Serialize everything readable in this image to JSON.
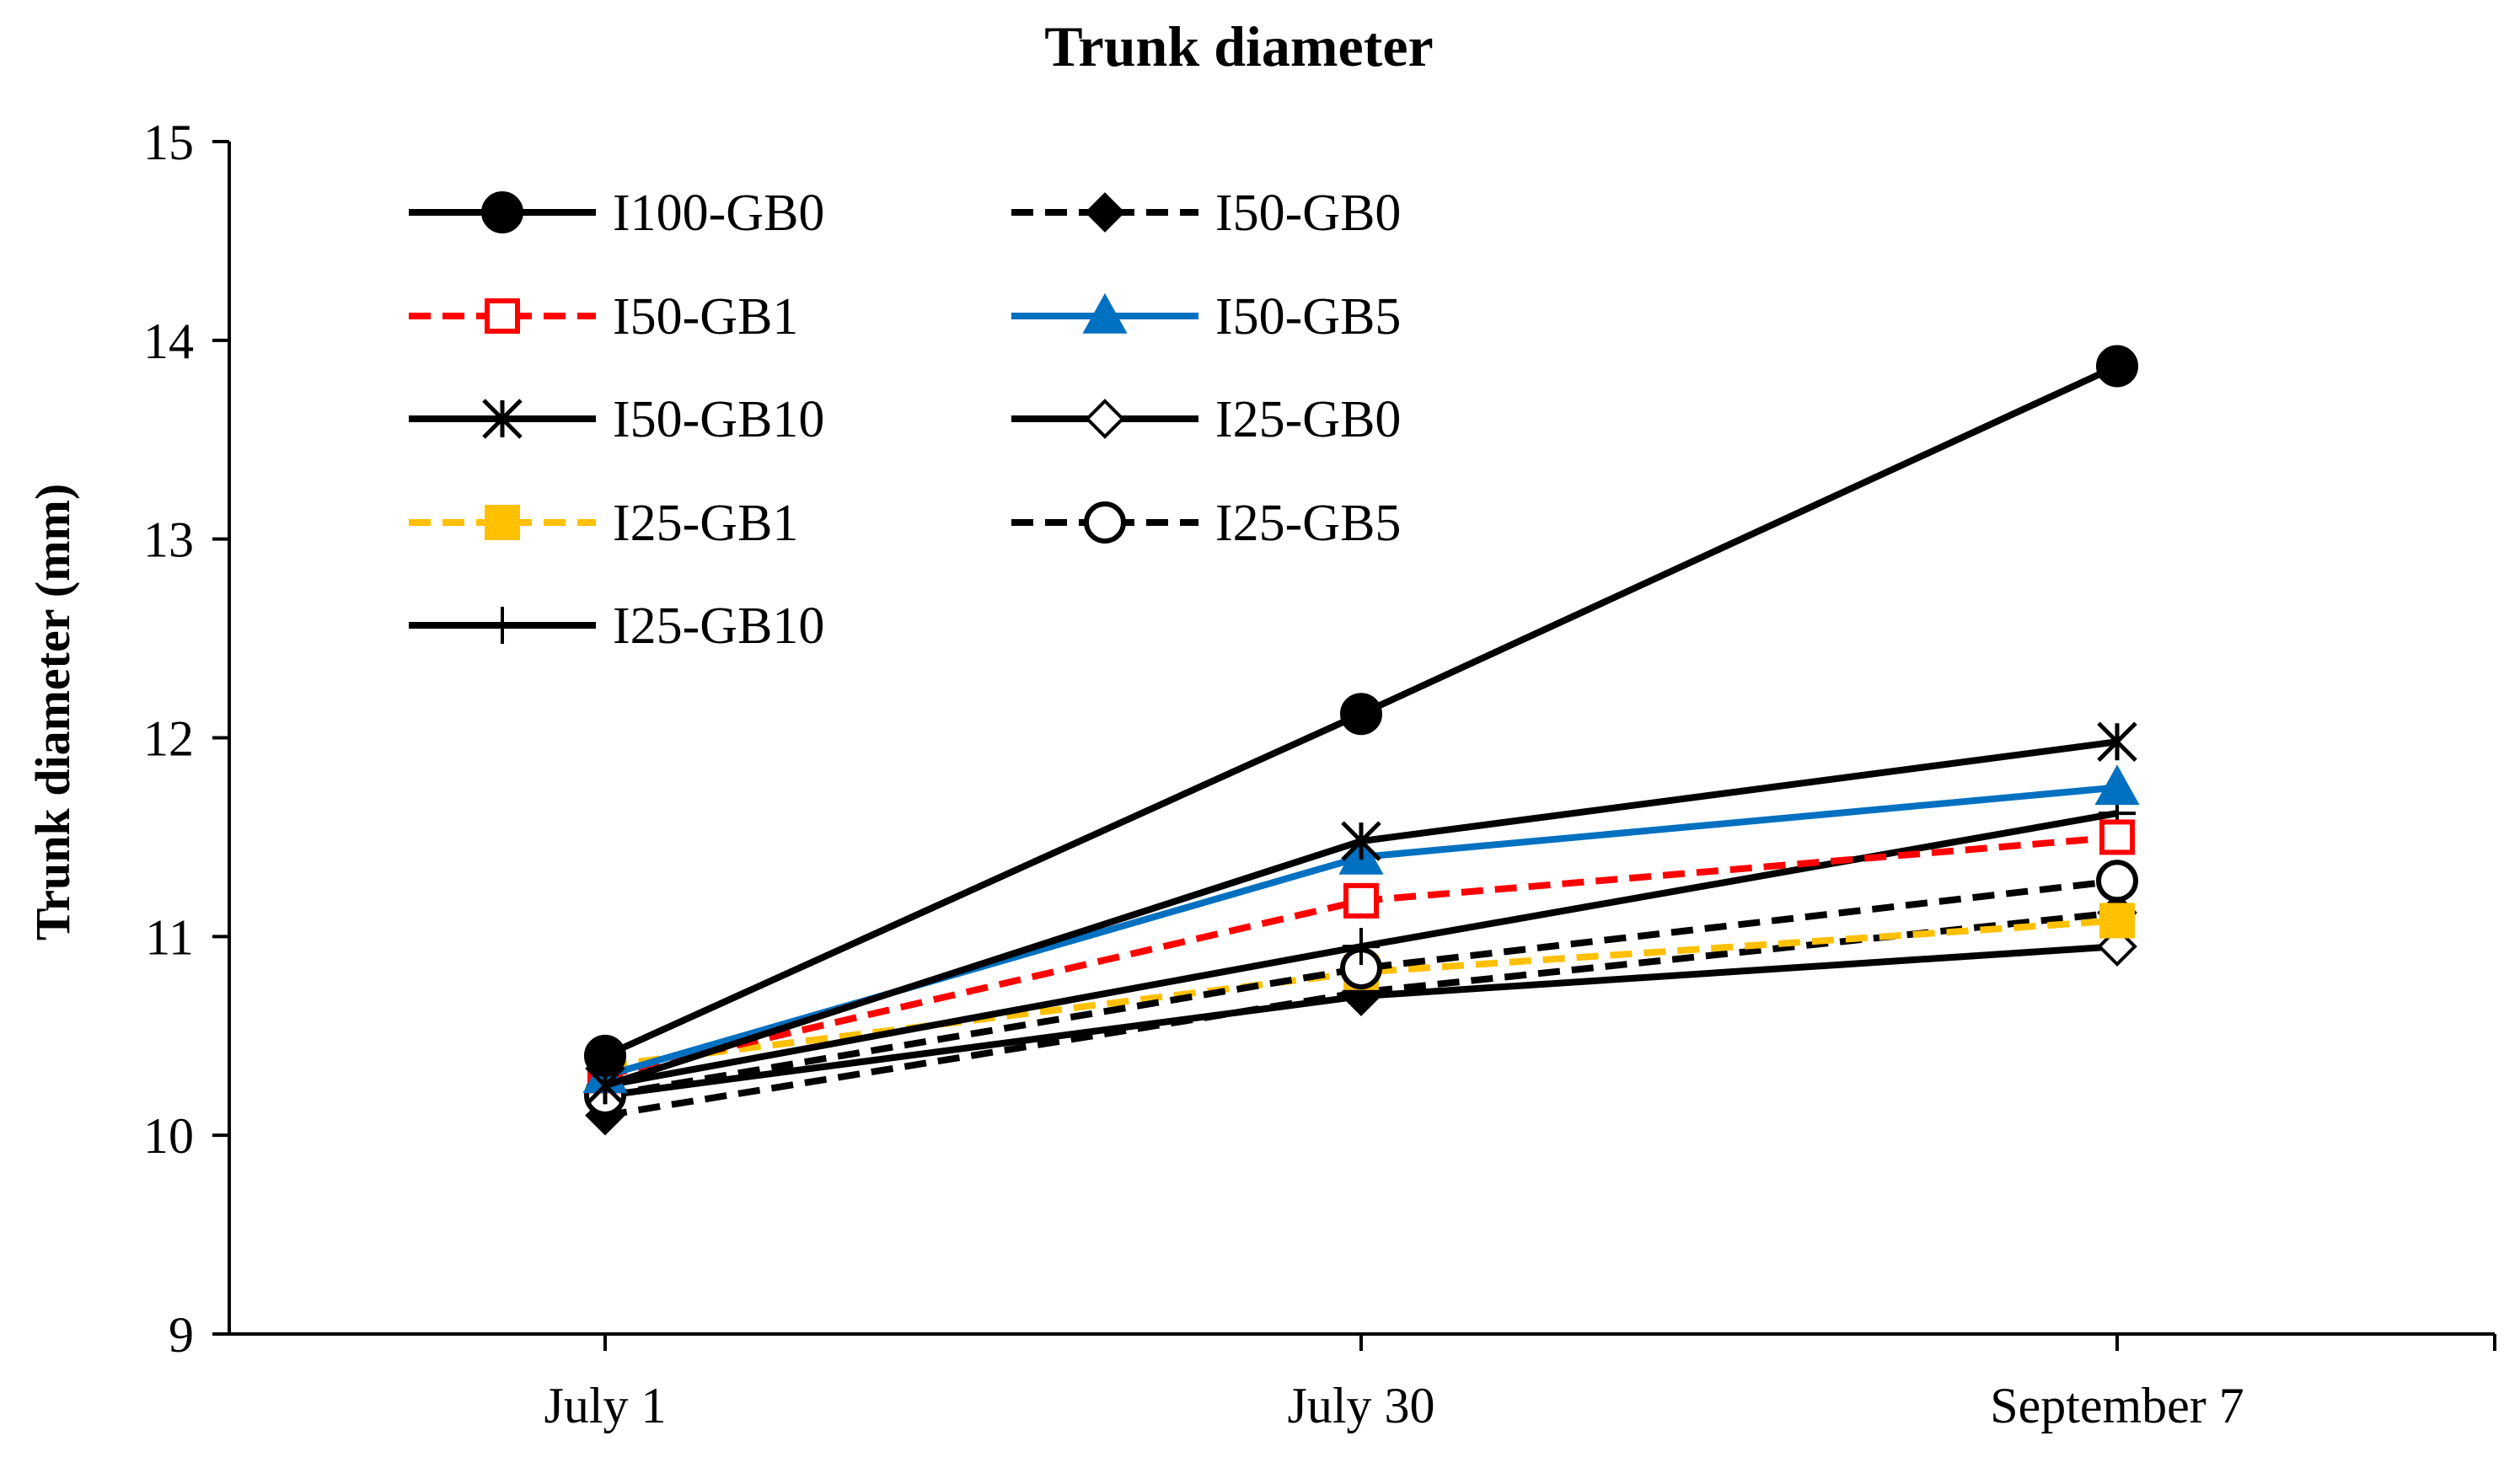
{
  "chart_data": {
    "type": "line",
    "title": "Trunk diameter",
    "xlabel": "",
    "ylabel": "Trunk diameter (mm)",
    "categories": [
      "July 1",
      "July 30",
      "September 7"
    ],
    "ylim": [
      9,
      15
    ],
    "yticks": [
      9,
      10,
      11,
      12,
      13,
      14,
      15
    ],
    "legend_position": "top-left",
    "grid": false,
    "series": [
      {
        "name": "I100-GB0",
        "values": [
          10.4,
          12.12,
          13.87
        ],
        "color": "#000000",
        "dash": "solid",
        "marker": "circle",
        "fill": "#000000"
      },
      {
        "name": "I50-GB0",
        "values": [
          10.1,
          10.72,
          11.12
        ],
        "color": "#000000",
        "dash": "dashed",
        "marker": "diamond",
        "fill": "#000000"
      },
      {
        "name": "I50-GB1",
        "values": [
          10.3,
          11.18,
          11.5
        ],
        "color": "#ff0000",
        "dash": "dashed",
        "marker": "square",
        "fill": "#ffffff"
      },
      {
        "name": "I50-GB5",
        "values": [
          10.3,
          11.4,
          11.75
        ],
        "color": "#0070c0",
        "dash": "solid",
        "marker": "triangle",
        "fill": "#0070c0"
      },
      {
        "name": "I50-GB10",
        "values": [
          10.25,
          11.48,
          11.98
        ],
        "color": "#000000",
        "dash": "solid",
        "marker": "star",
        "fill": "none"
      },
      {
        "name": "I25-GB0",
        "values": [
          10.2,
          10.7,
          10.95
        ],
        "color": "#000000",
        "dash": "solid",
        "marker": "diamond",
        "fill": "#ffffff"
      },
      {
        "name": "I25-GB1",
        "values": [
          10.35,
          10.82,
          11.08
        ],
        "color": "#ffc000",
        "dash": "dashed",
        "marker": "square",
        "fill": "#ffc000"
      },
      {
        "name": "I25-GB5",
        "values": [
          10.2,
          10.84,
          11.28
        ],
        "color": "#000000",
        "dash": "dashed",
        "marker": "circle",
        "fill": "#ffffff"
      },
      {
        "name": "I25-GB10",
        "values": [
          10.25,
          10.95,
          11.62
        ],
        "color": "#000000",
        "dash": "solid",
        "marker": "plus",
        "fill": "none"
      }
    ]
  }
}
